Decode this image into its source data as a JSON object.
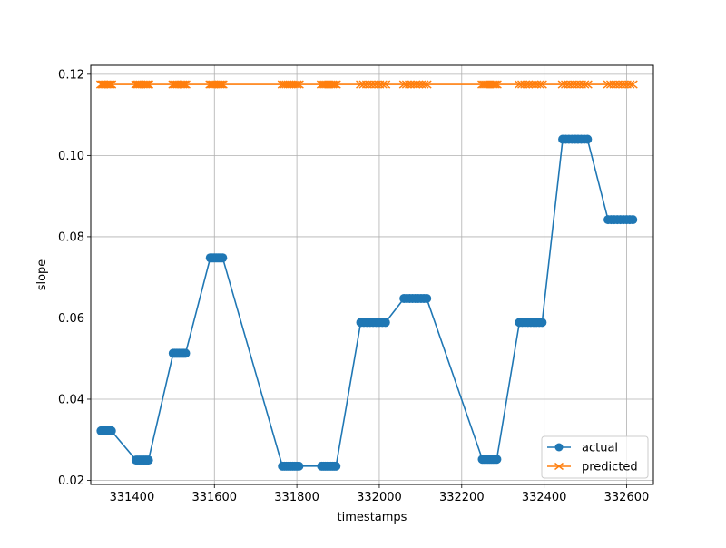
{
  "chart_data": {
    "type": "line",
    "title": "",
    "xlabel": "timestamps",
    "ylabel": "slope",
    "xlim": [
      331300,
      332665
    ],
    "ylim": [
      0.019,
      0.1222
    ],
    "xticks": [
      331400,
      331600,
      331800,
      332000,
      332200,
      332400,
      332600
    ],
    "xtick_labels": [
      "331400",
      "331600",
      "331800",
      "332000",
      "332200",
      "332400",
      "332600"
    ],
    "yticks": [
      0.02,
      0.04,
      0.06,
      0.08,
      0.1,
      0.12
    ],
    "ytick_labels": [
      "0.02",
      "0.04",
      "0.06",
      "0.08",
      "0.10",
      "0.12"
    ],
    "grid": true,
    "legend_position": "lower-right",
    "series": [
      {
        "name": "actual",
        "color": "#1f77b4",
        "marker": "circle",
        "groups": [
          {
            "x_start": 331325,
            "x_end": 331350,
            "y": 0.0322
          },
          {
            "x_start": 331410,
            "x_end": 331440,
            "y": 0.025
          },
          {
            "x_start": 331500,
            "x_end": 331530,
            "y": 0.0513
          },
          {
            "x_start": 331590,
            "x_end": 331620,
            "y": 0.0748
          },
          {
            "x_start": 331765,
            "x_end": 331805,
            "y": 0.0235
          },
          {
            "x_start": 331860,
            "x_end": 331895,
            "y": 0.0235
          },
          {
            "x_start": 331955,
            "x_end": 332015,
            "y": 0.0589
          },
          {
            "x_start": 332060,
            "x_end": 332115,
            "y": 0.0648
          },
          {
            "x_start": 332250,
            "x_end": 332285,
            "y": 0.0252
          },
          {
            "x_start": 332340,
            "x_end": 332395,
            "y": 0.0589
          },
          {
            "x_start": 332445,
            "x_end": 332505,
            "y": 0.104
          },
          {
            "x_start": 332555,
            "x_end": 332615,
            "y": 0.0842
          }
        ]
      },
      {
        "name": "predicted",
        "color": "#ff7f0e",
        "marker": "x",
        "groups": [
          {
            "x_start": 331325,
            "x_end": 331350,
            "y": 0.1175
          },
          {
            "x_start": 331410,
            "x_end": 331440,
            "y": 0.1175
          },
          {
            "x_start": 331500,
            "x_end": 331530,
            "y": 0.1175
          },
          {
            "x_start": 331590,
            "x_end": 331620,
            "y": 0.1175
          },
          {
            "x_start": 331765,
            "x_end": 331805,
            "y": 0.1175
          },
          {
            "x_start": 331860,
            "x_end": 331895,
            "y": 0.1175
          },
          {
            "x_start": 331955,
            "x_end": 332015,
            "y": 0.1175
          },
          {
            "x_start": 332060,
            "x_end": 332115,
            "y": 0.1175
          },
          {
            "x_start": 332250,
            "x_end": 332285,
            "y": 0.1175
          },
          {
            "x_start": 332340,
            "x_end": 332395,
            "y": 0.1175
          },
          {
            "x_start": 332445,
            "x_end": 332505,
            "y": 0.1175
          },
          {
            "x_start": 332555,
            "x_end": 332615,
            "y": 0.1175
          }
        ]
      }
    ]
  }
}
